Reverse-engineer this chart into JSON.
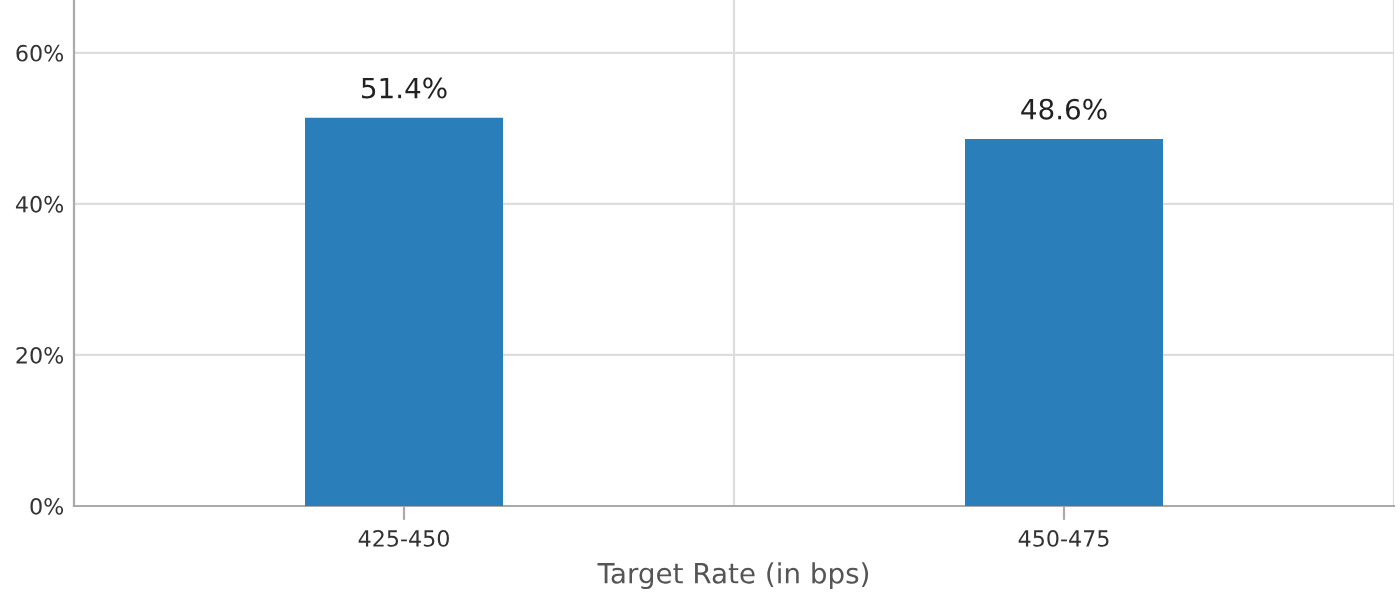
{
  "chart_data": {
    "type": "bar",
    "xlabel": "Target Rate (in bps)",
    "categories": [
      "425-450",
      "450-475"
    ],
    "values": [
      51.4,
      48.6
    ],
    "color": "#2a7fba",
    "value_labels": [
      "51.4%",
      "48.6%"
    ],
    "ylim": [
      0,
      67
    ],
    "yticks": [
      {
        "value": 0,
        "label": "0%"
      },
      {
        "value": 20,
        "label": "20%"
      },
      {
        "value": 40,
        "label": "40%"
      },
      {
        "value": 60,
        "label": "60%"
      }
    ],
    "grid": true,
    "legend": false
  }
}
